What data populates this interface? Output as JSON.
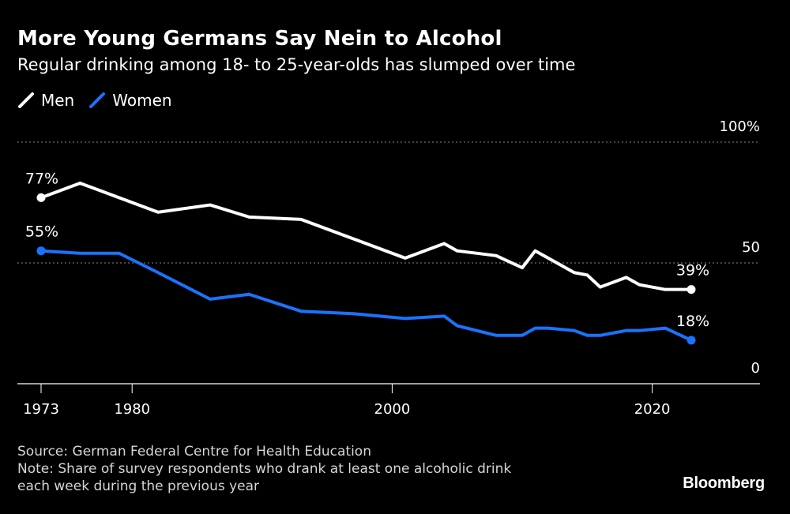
{
  "title": "More Young Germans Say Nein to Alcohol",
  "subtitle": "Regular drinking among 18- to 25-year-olds has slumped over time",
  "footer": {
    "source": "Source: German Federal Centre for Health Education",
    "note_line1": "Note: Share of survey respondents who drank at least one alcoholic drink",
    "note_line2": "each week during the previous year"
  },
  "brand": "Bloomberg",
  "colors": {
    "background": "#000000",
    "men": "#ffffff",
    "women": "#1a73ff",
    "grid": "#8a8a8a",
    "text": "#ffffff"
  },
  "chart_data": {
    "type": "line",
    "title": "More Young Germans Say Nein to Alcohol",
    "subtitle": "Regular drinking among 18- to 25-year-olds has slumped over time",
    "xlabel": "",
    "ylabel": "",
    "xlim": [
      1973,
      2023
    ],
    "ylim": [
      0,
      100
    ],
    "x_ticks": [
      1973,
      1980,
      2000,
      2020
    ],
    "x_tick_labels": [
      "1973",
      "1980",
      "2000",
      "2020"
    ],
    "y_ticks": [
      0,
      50,
      100
    ],
    "y_tick_labels": [
      "0",
      "50",
      "100%"
    ],
    "grid": "horizontal dotted at 50 and 100",
    "legend": "top-left",
    "series": [
      {
        "name": "Men",
        "color": "#ffffff",
        "x": [
          1973,
          1976,
          1979,
          1982,
          1986,
          1989,
          1993,
          1997,
          2001,
          2004,
          2005,
          2008,
          2010,
          2011,
          2012,
          2014,
          2015,
          2016,
          2018,
          2019,
          2021,
          2023
        ],
        "values": [
          77,
          83,
          77,
          71,
          74,
          69,
          68,
          60,
          52,
          58,
          55,
          53,
          48,
          55,
          52,
          46,
          45,
          40,
          44,
          41,
          39,
          39
        ],
        "start_label": "77%",
        "end_label": "39%"
      },
      {
        "name": "Women",
        "color": "#1a73ff",
        "x": [
          1973,
          1976,
          1979,
          1982,
          1986,
          1989,
          1993,
          1997,
          2001,
          2004,
          2005,
          2008,
          2010,
          2011,
          2012,
          2014,
          2015,
          2016,
          2018,
          2019,
          2021,
          2023
        ],
        "values": [
          55,
          54,
          54,
          46,
          35,
          37,
          30,
          29,
          27,
          28,
          24,
          20,
          20,
          23,
          23,
          22,
          20,
          20,
          22,
          22,
          23,
          18
        ],
        "start_label": "55%",
        "end_label": "18%"
      }
    ]
  }
}
